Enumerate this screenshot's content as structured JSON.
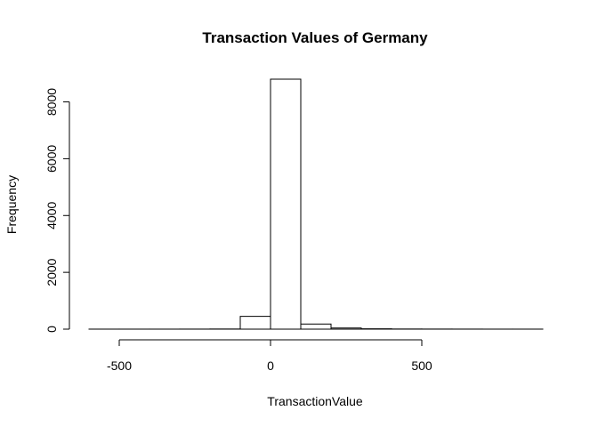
{
  "chart_data": {
    "type": "histogram",
    "title": "Transaction Values of Germany",
    "xlabel": "TransactionValue",
    "ylabel": "Frequency",
    "bin_width": 100,
    "bins": [
      {
        "x0": -600,
        "x1": -500,
        "count": 1
      },
      {
        "x0": -500,
        "x1": -400,
        "count": 1
      },
      {
        "x0": -400,
        "x1": -300,
        "count": 1
      },
      {
        "x0": -300,
        "x1": -200,
        "count": 2
      },
      {
        "x0": -200,
        "x1": -100,
        "count": 5
      },
      {
        "x0": -100,
        "x1": 0,
        "count": 450
      },
      {
        "x0": 0,
        "x1": 100,
        "count": 8800
      },
      {
        "x0": 100,
        "x1": 200,
        "count": 180
      },
      {
        "x0": 200,
        "x1": 300,
        "count": 40
      },
      {
        "x0": 300,
        "x1": 400,
        "count": 12
      },
      {
        "x0": 400,
        "x1": 500,
        "count": 5
      },
      {
        "x0": 500,
        "x1": 600,
        "count": 3
      },
      {
        "x0": 600,
        "x1": 700,
        "count": 2
      },
      {
        "x0": 700,
        "x1": 800,
        "count": 1
      },
      {
        "x0": 800,
        "x1": 900,
        "count": 1
      }
    ],
    "xlim": [
      -600,
      900
    ],
    "ylim": [
      0,
      8800
    ],
    "x_ticks": [
      -500,
      0,
      500
    ],
    "x_tick_labels": [
      "-500",
      "0",
      "500"
    ],
    "y_ticks": [
      0,
      2000,
      4000,
      6000,
      8000
    ],
    "y_tick_labels": [
      "0",
      "2000",
      "4000",
      "6000",
      "8000"
    ],
    "grid": false,
    "bar_fill": "#ffffff",
    "bar_stroke": "#000000"
  }
}
